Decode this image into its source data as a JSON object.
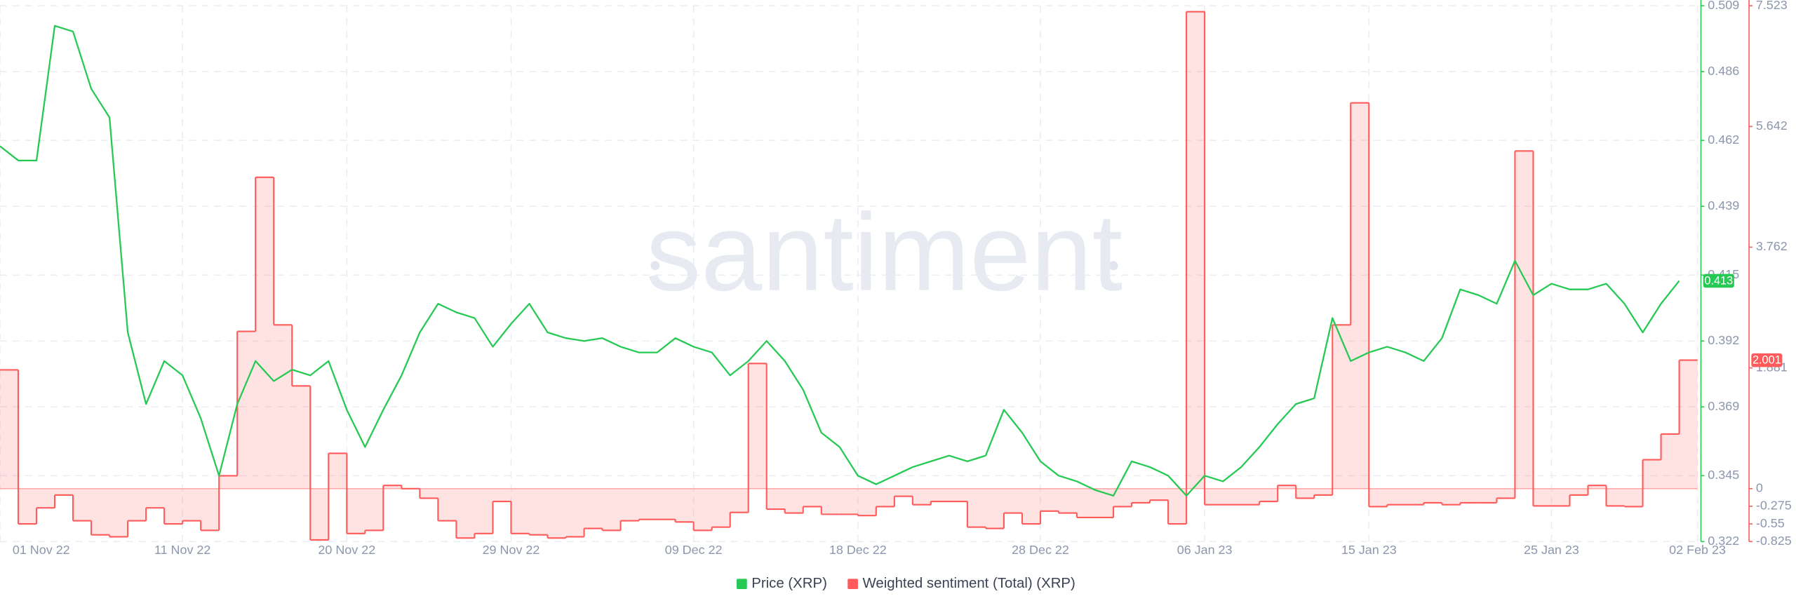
{
  "chart_data": {
    "type": "line-step",
    "watermark": "santiment",
    "x": [
      "2022-11-01",
      "2022-11-02",
      "2022-11-03",
      "2022-11-04",
      "2022-11-05",
      "2022-11-06",
      "2022-11-07",
      "2022-11-08",
      "2022-11-09",
      "2022-11-10",
      "2022-11-11",
      "2022-11-12",
      "2022-11-13",
      "2022-11-14",
      "2022-11-15",
      "2022-11-16",
      "2022-11-17",
      "2022-11-18",
      "2022-11-19",
      "2022-11-20",
      "2022-11-21",
      "2022-11-22",
      "2022-11-23",
      "2022-11-24",
      "2022-11-25",
      "2022-11-26",
      "2022-11-27",
      "2022-11-28",
      "2022-11-29",
      "2022-11-30",
      "2022-12-01",
      "2022-12-02",
      "2022-12-03",
      "2022-12-04",
      "2022-12-05",
      "2022-12-06",
      "2022-12-07",
      "2022-12-08",
      "2022-12-09",
      "2022-12-10",
      "2022-12-11",
      "2022-12-12",
      "2022-12-13",
      "2022-12-14",
      "2022-12-15",
      "2022-12-16",
      "2022-12-17",
      "2022-12-18",
      "2022-12-19",
      "2022-12-20",
      "2022-12-21",
      "2022-12-22",
      "2022-12-23",
      "2022-12-24",
      "2022-12-25",
      "2022-12-26",
      "2022-12-27",
      "2022-12-28",
      "2022-12-29",
      "2022-12-30",
      "2022-12-31",
      "2023-01-01",
      "2023-01-02",
      "2023-01-03",
      "2023-01-04",
      "2023-01-05",
      "2023-01-06",
      "2023-01-07",
      "2023-01-08",
      "2023-01-09",
      "2023-01-10",
      "2023-01-11",
      "2023-01-12",
      "2023-01-13",
      "2023-01-14",
      "2023-01-15",
      "2023-01-16",
      "2023-01-17",
      "2023-01-18",
      "2023-01-19",
      "2023-01-20",
      "2023-01-21",
      "2023-01-22",
      "2023-01-23",
      "2023-01-24",
      "2023-01-25",
      "2023-01-26",
      "2023-01-27",
      "2023-01-28",
      "2023-01-29",
      "2023-01-30",
      "2023-01-31",
      "2023-02-01"
    ],
    "xlim": [
      "2022-11-01",
      "2023-02-02"
    ],
    "xticks": [
      {
        "value": "2022-11-01",
        "label": "01 Nov 22"
      },
      {
        "value": "2022-11-11",
        "label": "11 Nov 22"
      },
      {
        "value": "2022-11-20",
        "label": "20 Nov 22"
      },
      {
        "value": "2022-11-29",
        "label": "29 Nov 22"
      },
      {
        "value": "2022-12-09",
        "label": "09 Dec 22"
      },
      {
        "value": "2022-12-18",
        "label": "18 Dec 22"
      },
      {
        "value": "2022-12-28",
        "label": "28 Dec 22"
      },
      {
        "value": "2023-01-06",
        "label": "06 Jan 23"
      },
      {
        "value": "2023-01-15",
        "label": "15 Jan 23"
      },
      {
        "value": "2023-01-25",
        "label": "25 Jan 23"
      },
      {
        "value": "2023-02-02",
        "label": "02 Feb 23"
      }
    ],
    "ylim": [
      0.322,
      0.509
    ],
    "yticks": [
      0.322,
      0.345,
      0.369,
      0.392,
      0.415,
      0.439,
      0.462,
      0.486,
      0.509
    ],
    "y2lim": [
      -0.825,
      7.523
    ],
    "y2ticks": [
      -0.825,
      -0.55,
      -0.275,
      0,
      1.881,
      3.762,
      5.642,
      7.523
    ],
    "grid": true,
    "series": [
      {
        "name": "Price (XRP)",
        "color": "#26c953",
        "kind": "line",
        "badge": "0.413",
        "values": [
          0.46,
          0.455,
          0.455,
          0.502,
          0.5,
          0.48,
          0.47,
          0.395,
          0.37,
          0.385,
          0.38,
          0.365,
          0.345,
          0.37,
          0.385,
          0.378,
          0.382,
          0.38,
          0.385,
          0.368,
          0.355,
          0.368,
          0.38,
          0.395,
          0.405,
          0.402,
          0.4,
          0.39,
          0.398,
          0.405,
          0.395,
          0.393,
          0.392,
          0.393,
          0.39,
          0.388,
          0.388,
          0.393,
          0.39,
          0.388,
          0.38,
          0.385,
          0.392,
          0.385,
          0.375,
          0.36,
          0.355,
          0.345,
          0.342,
          0.345,
          0.348,
          0.35,
          0.352,
          0.35,
          0.352,
          0.368,
          0.36,
          0.35,
          0.345,
          0.343,
          0.34,
          0.338,
          0.35,
          0.348,
          0.345,
          0.338,
          0.345,
          0.343,
          0.348,
          0.355,
          0.363,
          0.37,
          0.372,
          0.4,
          0.385,
          0.388,
          0.39,
          0.388,
          0.385,
          0.393,
          0.41,
          0.408,
          0.405,
          0.42,
          0.408,
          0.412,
          0.41,
          0.41,
          0.412,
          0.405,
          0.395,
          0.405,
          0.413
        ]
      },
      {
        "name": "Weighted sentiment (Total) (XRP)",
        "color": "#ff5b5b",
        "kind": "step",
        "axis": "y2",
        "badge": "2.001",
        "values": [
          1.85,
          -0.55,
          -0.3,
          -0.1,
          -0.5,
          -0.72,
          -0.75,
          -0.5,
          -0.3,
          -0.55,
          -0.5,
          -0.65,
          0.2,
          2.45,
          4.85,
          2.55,
          1.6,
          -0.8,
          0.55,
          -0.7,
          -0.65,
          0.05,
          0.0,
          -0.15,
          -0.5,
          -0.77,
          -0.7,
          -0.2,
          -0.7,
          -0.72,
          -0.77,
          -0.75,
          -0.62,
          -0.65,
          -0.5,
          -0.48,
          -0.48,
          -0.52,
          -0.65,
          -0.6,
          -0.37,
          1.95,
          -0.32,
          -0.38,
          -0.28,
          -0.4,
          -0.4,
          -0.42,
          -0.28,
          -0.12,
          -0.25,
          -0.2,
          -0.2,
          -0.6,
          -0.62,
          -0.38,
          -0.55,
          -0.35,
          -0.38,
          -0.45,
          -0.45,
          -0.28,
          -0.22,
          -0.18,
          -0.55,
          7.43,
          -0.25,
          -0.25,
          -0.25,
          -0.2,
          0.05,
          -0.15,
          -0.1,
          2.55,
          6.01,
          -0.28,
          -0.25,
          -0.25,
          -0.22,
          -0.25,
          -0.22,
          -0.22,
          -0.15,
          5.26,
          -0.27,
          -0.27,
          -0.1,
          0.05,
          -0.27,
          -0.28,
          0.45,
          0.85,
          2.001
        ]
      }
    ]
  }
}
